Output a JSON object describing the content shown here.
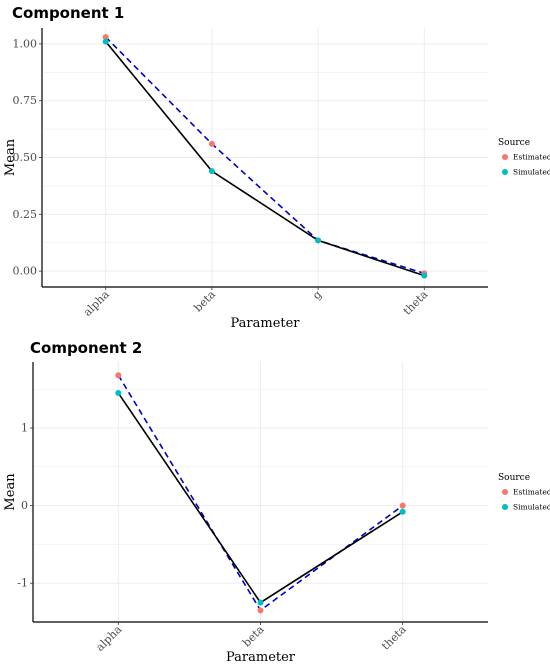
{
  "chart_data": [
    {
      "type": "line",
      "title": "Component 1",
      "xlabel": "Parameter",
      "ylabel": "Mean",
      "categories": [
        "alpha",
        "beta",
        "g",
        "theta"
      ],
      "ylim": [
        -0.07,
        1.07
      ],
      "yticks": [
        0,
        0.25,
        0.5,
        0.75,
        1
      ],
      "ytick_labels": [
        "0.00",
        "0.25",
        "0.50",
        "0.75",
        "1.00"
      ],
      "grid": true,
      "legend": {
        "title": "Source",
        "position": "right"
      },
      "series": [
        {
          "name": "Estimated",
          "values": [
            1.03,
            0.56,
            0.135,
            -0.01
          ],
          "color": "#F8766D",
          "line_color": "#0000CC",
          "line_style": "dashed"
        },
        {
          "name": "Simulated",
          "values": [
            1.01,
            0.44,
            0.135,
            -0.02
          ],
          "color": "#00BFC4",
          "line_color": "#000000",
          "line_style": "solid"
        }
      ]
    },
    {
      "type": "line",
      "title": "Component 2",
      "xlabel": "Parameter",
      "ylabel": "Mean",
      "categories": [
        "alpha",
        "beta",
        "theta"
      ],
      "ylim": [
        -1.5,
        1.85
      ],
      "yticks": [
        -1,
        0,
        1
      ],
      "ytick_labels": [
        "-1",
        "0",
        "1"
      ],
      "grid": true,
      "legend": {
        "title": "Source",
        "position": "right"
      },
      "series": [
        {
          "name": "Estimated",
          "values": [
            1.68,
            -1.35,
            0.0
          ],
          "color": "#F8766D",
          "line_color": "#0000CC",
          "line_style": "dashed"
        },
        {
          "name": "Simulated",
          "values": [
            1.45,
            -1.25,
            -0.08
          ],
          "color": "#00BFC4",
          "line_color": "#000000",
          "line_style": "solid"
        }
      ]
    }
  ]
}
